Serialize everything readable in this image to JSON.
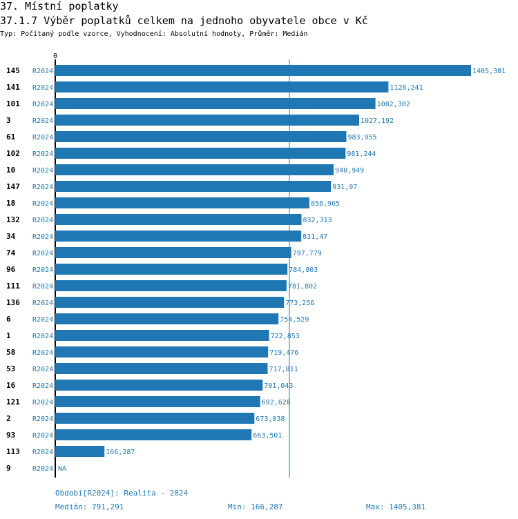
{
  "header": {
    "title": "37. Místní poplatky",
    "subtitle": "37.1.7 Výběr poplatků celkem na jednoho obyvatele obce v  Kč",
    "type_line": "Typ: Počítaný podle vzorce, Vyhodnocení: Absolutní hodnoty, Průměr: Medián"
  },
  "colors": {
    "bar": "#1f77b4",
    "text_blue": "#1f77b4",
    "axis": "#000000"
  },
  "chart_data": {
    "type": "bar",
    "orientation": "horizontal",
    "title": "37.1.7 Výběr poplatků celkem na jednoho obyvatele obce v  Kč",
    "x_tick_label": "0",
    "xlim": [
      0,
      1405.381
    ],
    "median_line": 791.291,
    "series_label": "R2024",
    "rows": [
      {
        "id": "145",
        "period": "R2024",
        "value": 1405.381,
        "label": "1405,381"
      },
      {
        "id": "141",
        "period": "R2024",
        "value": 1126.241,
        "label": "1126,241"
      },
      {
        "id": "101",
        "period": "R2024",
        "value": 1082.302,
        "label": "1082,302"
      },
      {
        "id": "3",
        "period": "R2024",
        "value": 1027.192,
        "label": "1027,192"
      },
      {
        "id": "61",
        "period": "R2024",
        "value": 983.955,
        "label": "983,955"
      },
      {
        "id": "102",
        "period": "R2024",
        "value": 981.244,
        "label": "981,244"
      },
      {
        "id": "10",
        "period": "R2024",
        "value": 940.949,
        "label": "940,949"
      },
      {
        "id": "147",
        "period": "R2024",
        "value": 931.97,
        "label": "931,97"
      },
      {
        "id": "18",
        "period": "R2024",
        "value": 858.965,
        "label": "858,965"
      },
      {
        "id": "132",
        "period": "R2024",
        "value": 832.313,
        "label": "832,313"
      },
      {
        "id": "34",
        "period": "R2024",
        "value": 831.47,
        "label": "831,47"
      },
      {
        "id": "74",
        "period": "R2024",
        "value": 797.779,
        "label": "797,779"
      },
      {
        "id": "96",
        "period": "R2024",
        "value": 784.803,
        "label": "784,803"
      },
      {
        "id": "111",
        "period": "R2024",
        "value": 781.802,
        "label": "781,802"
      },
      {
        "id": "136",
        "period": "R2024",
        "value": 773.256,
        "label": "773,256"
      },
      {
        "id": "6",
        "period": "R2024",
        "value": 754.529,
        "label": "754,529"
      },
      {
        "id": "1",
        "period": "R2024",
        "value": 722.853,
        "label": "722,853"
      },
      {
        "id": "58",
        "period": "R2024",
        "value": 719.476,
        "label": "719,476"
      },
      {
        "id": "53",
        "period": "R2024",
        "value": 717.811,
        "label": "717,811"
      },
      {
        "id": "16",
        "period": "R2024",
        "value": 701.043,
        "label": "701,043"
      },
      {
        "id": "121",
        "period": "R2024",
        "value": 692.628,
        "label": "692,628"
      },
      {
        "id": "2",
        "period": "R2024",
        "value": 673.038,
        "label": "673,038"
      },
      {
        "id": "93",
        "period": "R2024",
        "value": 663.501,
        "label": "663,501"
      },
      {
        "id": "113",
        "period": "R2024",
        "value": 166.287,
        "label": "166,287"
      },
      {
        "id": "9",
        "period": "R2024",
        "value": null,
        "label": "NA"
      }
    ]
  },
  "footer": {
    "period": "Období[R2024]: Realita - 2024",
    "median": "Medián: 791,291",
    "min": "Min: 166,287",
    "max": "Max: 1405,381"
  }
}
